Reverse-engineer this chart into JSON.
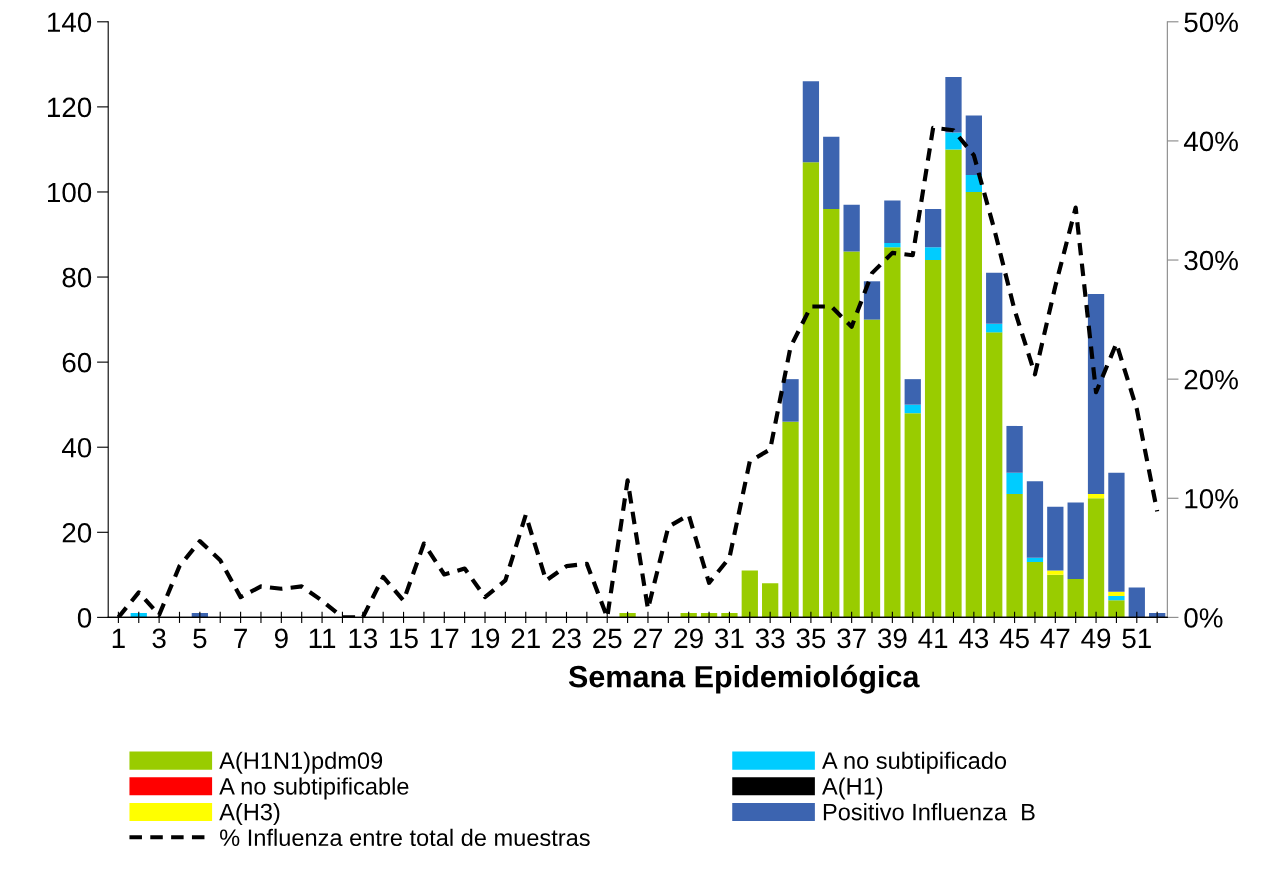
{
  "chart_data": {
    "type": "bar",
    "stacked": true,
    "xlabel": "Semana Epidemiológica",
    "categories": [
      "1",
      null,
      "3",
      null,
      "5",
      null,
      "7",
      null,
      "9",
      null,
      "11",
      null,
      "13",
      null,
      "15",
      null,
      "17",
      null,
      "19",
      null,
      "21",
      null,
      "23",
      null,
      "25",
      null,
      "27",
      null,
      "29",
      null,
      "31",
      null,
      "33",
      null,
      "35",
      null,
      "37",
      null,
      "39",
      null,
      "41",
      null,
      "43",
      null,
      "45",
      null,
      "47",
      null,
      "49",
      null,
      "51",
      null
    ],
    "ylim": [
      0,
      140
    ],
    "yticks": [
      0,
      20,
      40,
      60,
      80,
      100,
      120,
      140
    ],
    "y2lim": [
      0,
      50
    ],
    "y2ticks": [
      {
        "value": 0,
        "label": "0%"
      },
      {
        "value": 10,
        "label": "10%"
      },
      {
        "value": 20,
        "label": "20%"
      },
      {
        "value": 30,
        "label": "30%"
      },
      {
        "value": 40,
        "label": "40%"
      },
      {
        "value": 50,
        "label": "50%"
      }
    ],
    "grid": false,
    "legend": "bottom",
    "series": [
      {
        "name": "A(H1N1)pdm09",
        "color": "#99cc00",
        "values": [
          0,
          0,
          0,
          0,
          0,
          0,
          0,
          0,
          0,
          0,
          0,
          0,
          0,
          0,
          0,
          0,
          0,
          0,
          0,
          0,
          0,
          0,
          0,
          0,
          0,
          1,
          0,
          0,
          1,
          1,
          1,
          11,
          8,
          46,
          107,
          96,
          86,
          70,
          87,
          48,
          84,
          110,
          100,
          67,
          29,
          13,
          10,
          9,
          28,
          4,
          0,
          0
        ]
      },
      {
        "name": "A no subtipificado",
        "color": "#00ccff",
        "values": [
          0,
          1,
          0,
          0,
          0,
          0,
          0,
          0,
          0,
          0,
          0,
          0,
          0,
          0,
          0,
          0,
          0,
          0,
          0,
          0,
          0,
          0,
          0,
          0,
          0,
          0,
          0,
          0,
          0,
          0,
          0,
          0,
          0,
          0,
          0,
          0,
          0,
          0,
          1,
          2,
          3,
          4,
          4,
          2,
          5,
          1,
          0,
          0,
          0,
          1,
          0,
          0
        ]
      },
      {
        "name": "A no subtipificable",
        "color": "#ff0000",
        "values": [
          0,
          0,
          0,
          0,
          0,
          0,
          0,
          0,
          0,
          0,
          0,
          0,
          0,
          0,
          0,
          0,
          0,
          0,
          0,
          0,
          0,
          0,
          0,
          0,
          0,
          0,
          0,
          0,
          0,
          0,
          0,
          0,
          0,
          0,
          0,
          0,
          0,
          0,
          0,
          0,
          0,
          0,
          0,
          0,
          0,
          0,
          0,
          0,
          0,
          0,
          0,
          0
        ]
      },
      {
        "name": "A(H1)",
        "color": "#000000",
        "values": [
          0,
          0,
          0,
          0,
          0,
          0,
          0,
          0,
          0,
          0,
          0,
          0,
          0,
          0,
          0,
          0,
          0,
          0,
          0,
          0,
          0,
          0,
          0,
          0,
          0,
          0,
          0,
          0,
          0,
          0,
          0,
          0,
          0,
          0,
          0,
          0,
          0,
          0,
          0,
          0,
          0,
          0,
          0,
          0,
          0,
          0,
          0,
          0,
          0,
          0,
          0,
          0
        ]
      },
      {
        "name": "A(H3)",
        "color": "#ffff00",
        "values": [
          0,
          0,
          0,
          0,
          0,
          0,
          0,
          0,
          0,
          0,
          0,
          0,
          0,
          0,
          0,
          0,
          0,
          0,
          0,
          0,
          0,
          0,
          0,
          0,
          0,
          0,
          0,
          0,
          0,
          0,
          0,
          0,
          0,
          0,
          0,
          0,
          0,
          0,
          0,
          0,
          0,
          0,
          0,
          0,
          0,
          0,
          1,
          0,
          1,
          1,
          0,
          0
        ]
      },
      {
        "name": "Positivo Influenza  B",
        "color": "#3c64b0",
        "values": [
          0,
          0,
          0,
          0,
          1,
          0,
          0,
          0,
          0,
          0,
          0,
          0,
          0,
          0,
          0,
          0,
          0,
          0,
          0,
          0,
          0,
          0,
          0,
          0,
          0,
          0,
          0,
          0,
          0,
          0,
          0,
          0,
          0,
          10,
          19,
          17,
          11,
          9,
          10,
          6,
          9,
          13,
          14,
          12,
          11,
          18,
          15,
          18,
          47,
          28,
          7,
          1
        ]
      },
      {
        "name": "% Influenza entre total de muestras",
        "type": "line",
        "axis": "y2",
        "color": "#000000",
        "line_style": "dashed",
        "marker": "none",
        "values": [
          0,
          2.1,
          0.2,
          4.3,
          6.4,
          4.8,
          1.7,
          2.6,
          2.4,
          2.6,
          1.4,
          0,
          0,
          3.4,
          1.4,
          6.2,
          3.6,
          4.1,
          1.7,
          3.1,
          8.6,
          3.1,
          4.3,
          4.5,
          0,
          11.5,
          0.7,
          7.6,
          8.6,
          2.9,
          5.0,
          13.1,
          14.1,
          22.7,
          26.1,
          26.1,
          24.4,
          28.9,
          30.6,
          30.4,
          41.1,
          40.9,
          38.8,
          32.6,
          25.8,
          20.4,
          27.8,
          34.4,
          18.9,
          23.0,
          17.5,
          8.9
        ]
      }
    ]
  }
}
